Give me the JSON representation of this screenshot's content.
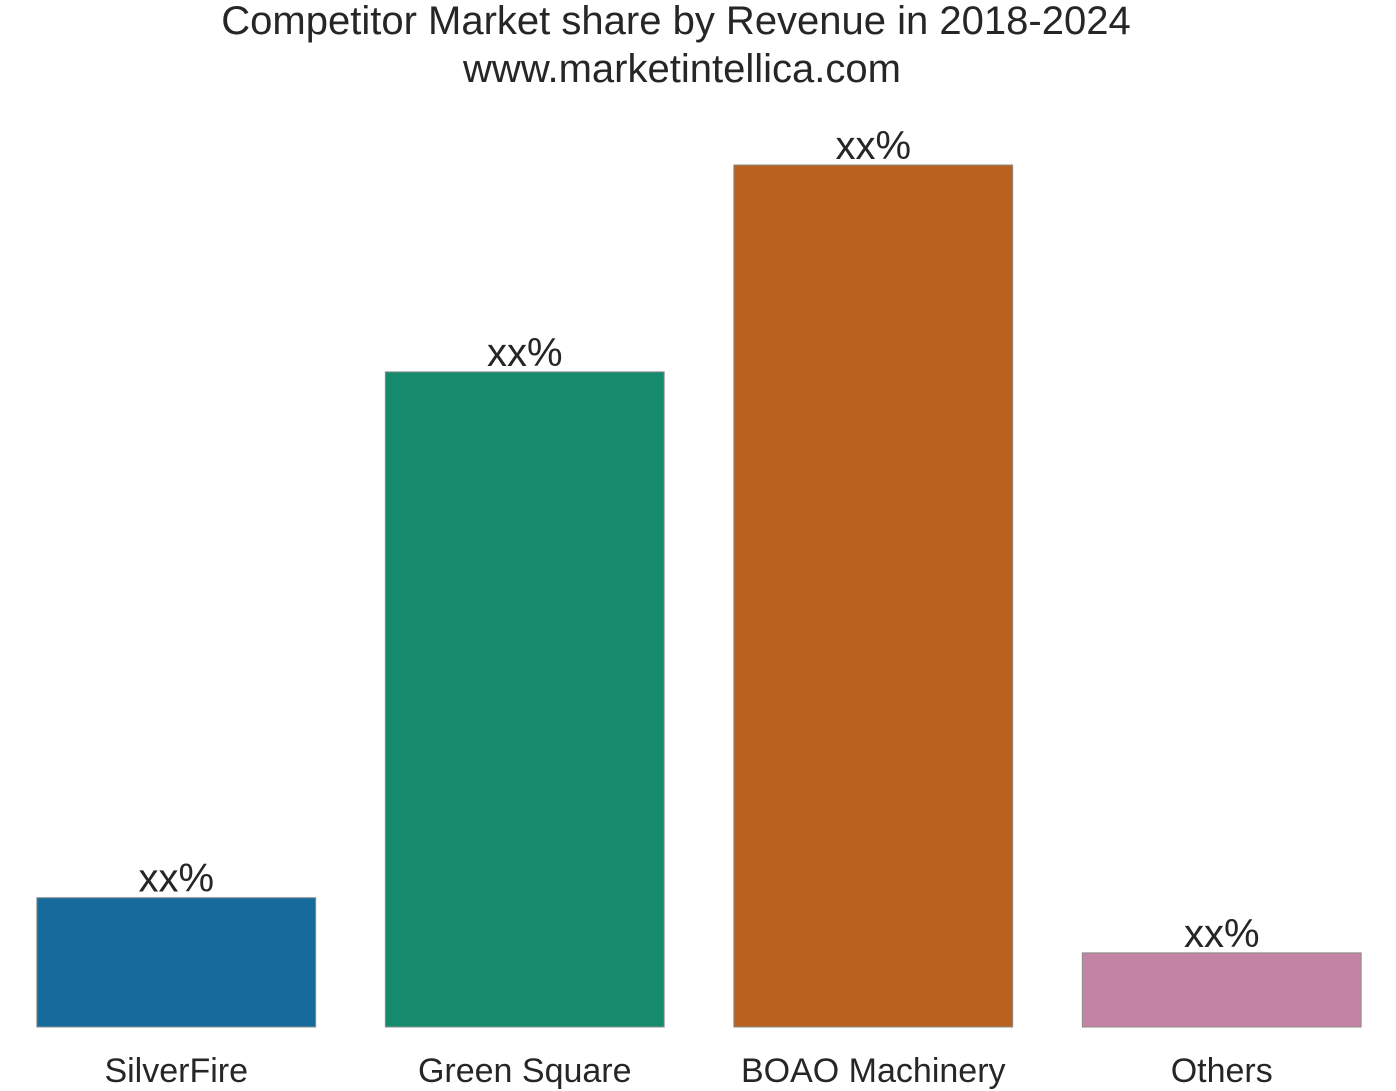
{
  "chart_data": {
    "type": "bar",
    "title": "Competitor Market share by Revenue in 2018-2024",
    "subtitle": "www.marketintellica.com",
    "xlabel": "",
    "ylabel": "",
    "categories": [
      "SilverFire",
      "Green Square",
      "BOAO Machinery",
      "Others"
    ],
    "values": [
      15,
      76,
      100,
      8.6
    ],
    "value_labels": [
      "xx%",
      "xx%",
      "xx%",
      "xx%"
    ],
    "colors": [
      "#176b9c",
      "#158a6d",
      "#b9611e",
      "#c383a5"
    ],
    "ylim": [
      0,
      100
    ],
    "grid": false,
    "legend": "none"
  }
}
